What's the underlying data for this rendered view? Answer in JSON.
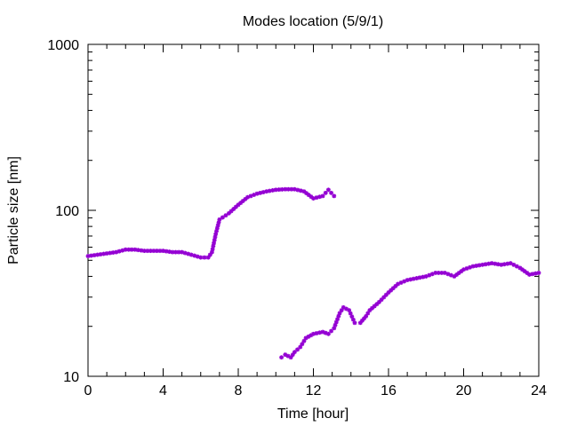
{
  "chart_data": {
    "type": "scatter",
    "title": "Modes location (5/9/1)",
    "xlabel": "Time [hour]",
    "ylabel": "Particle size [nm]",
    "xlim": [
      0,
      24
    ],
    "ylim": [
      10,
      1000
    ],
    "yscale": "log",
    "xticks": [
      0,
      4,
      8,
      12,
      16,
      20,
      24
    ],
    "yticks": [
      10,
      100,
      1000
    ],
    "xtick_labels": [
      "0",
      "4",
      "8",
      "12",
      "16",
      "20",
      "24"
    ],
    "ytick_labels": [
      "10",
      "100",
      "1000"
    ],
    "grid": false,
    "legend": "none",
    "marker_color": "#9400d3",
    "series": [
      {
        "points": [
          [
            0.0,
            53
          ],
          [
            0.5,
            54
          ],
          [
            1.0,
            55
          ],
          [
            1.5,
            56
          ],
          [
            2.0,
            58
          ],
          [
            2.5,
            58
          ],
          [
            3.0,
            57
          ],
          [
            3.5,
            57
          ],
          [
            4.0,
            57
          ],
          [
            4.5,
            56
          ],
          [
            5.0,
            56
          ],
          [
            5.5,
            54
          ],
          [
            6.0,
            52
          ],
          [
            6.4,
            52
          ],
          [
            6.6,
            56
          ],
          [
            6.8,
            72
          ],
          [
            7.0,
            88
          ],
          [
            7.5,
            96
          ],
          [
            8.0,
            108
          ],
          [
            8.5,
            120
          ],
          [
            9.0,
            126
          ],
          [
            9.5,
            130
          ],
          [
            10.0,
            133
          ],
          [
            10.5,
            134
          ],
          [
            11.0,
            134
          ],
          [
            11.5,
            130
          ],
          [
            12.0,
            118
          ],
          [
            12.5,
            122
          ],
          [
            12.8,
            133
          ],
          [
            13.1,
            122
          ]
        ]
      },
      {
        "points": [
          [
            10.3,
            13
          ],
          [
            10.5,
            13.5
          ],
          [
            10.8,
            13
          ],
          [
            11.0,
            14
          ],
          [
            11.3,
            15
          ],
          [
            11.6,
            17
          ],
          [
            12.0,
            18
          ],
          [
            12.5,
            18.5
          ],
          [
            12.8,
            18
          ],
          [
            13.1,
            19.5
          ],
          [
            13.4,
            24
          ],
          [
            13.6,
            26
          ],
          [
            13.9,
            25
          ],
          [
            14.2,
            21
          ],
          [
            14.5,
            21
          ],
          [
            14.8,
            23
          ],
          [
            15.0,
            25
          ],
          [
            15.5,
            28
          ],
          [
            16.0,
            32
          ],
          [
            16.5,
            36
          ],
          [
            17.0,
            38
          ],
          [
            17.5,
            39
          ],
          [
            18.0,
            40
          ],
          [
            18.5,
            42
          ],
          [
            19.0,
            42
          ],
          [
            19.5,
            40
          ],
          [
            20.0,
            44
          ],
          [
            20.5,
            46
          ],
          [
            21.0,
            47
          ],
          [
            21.5,
            48
          ],
          [
            22.0,
            47
          ],
          [
            22.5,
            48
          ],
          [
            23.0,
            45
          ],
          [
            23.5,
            41
          ],
          [
            24.0,
            42
          ]
        ]
      }
    ]
  }
}
